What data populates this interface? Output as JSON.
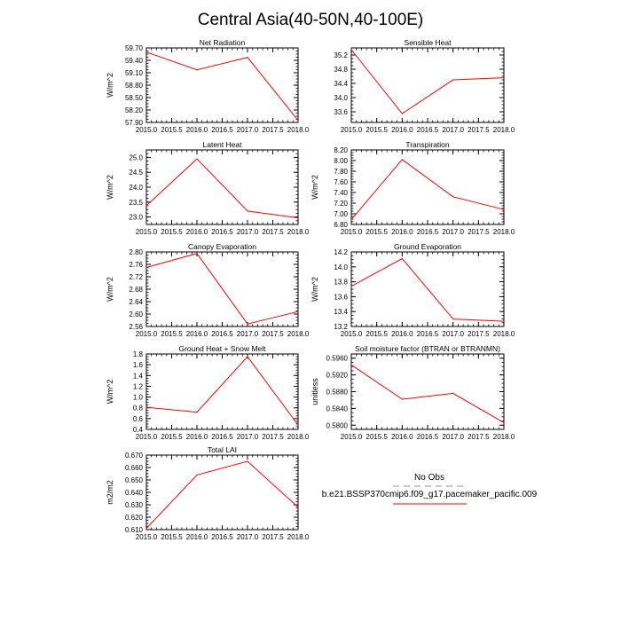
{
  "title": "Central Asia(40-50N,40-100E)",
  "colors": {
    "line": "#ff0000",
    "axis": "#000000",
    "no_obs": "#b4b4dc"
  },
  "legend": {
    "no_obs_label": "No Obs",
    "model_label": "b.e21.BSSP370cmip6.f09_g17.pacemaker_pacific.009"
  },
  "chart_data": [
    {
      "id": "net-radiation",
      "type": "line",
      "title": "Net Radiation",
      "ylabel": "W/m^2",
      "xlim": [
        2015.0,
        2018.0
      ],
      "ylim": [
        57.9,
        59.7
      ],
      "xticks": [
        2015.0,
        2015.5,
        2016.0,
        2016.5,
        2017.0,
        2017.5,
        2018.0
      ],
      "xtick_labels": [
        "2015.0",
        "2015.5",
        "2016.0",
        "2016.5",
        "2017.0",
        "2017.5",
        "2018.0"
      ],
      "yticks": [
        57.9,
        58.2,
        58.5,
        58.8,
        59.1,
        59.4,
        59.7
      ],
      "ytick_labels": [
        "57.90",
        "58.20",
        "58.50",
        "58.80",
        "59.10",
        "59.40",
        "59.70"
      ],
      "x": [
        2015,
        2016,
        2017,
        2018
      ],
      "y": [
        59.6,
        59.17,
        59.47,
        57.95
      ]
    },
    {
      "id": "sensible-heat",
      "type": "line",
      "title": "Sensible Heat",
      "ylabel": "",
      "xlim": [
        2015.0,
        2018.0
      ],
      "ylim": [
        33.3,
        35.4
      ],
      "xticks": [
        2015.0,
        2015.5,
        2016.0,
        2016.5,
        2017.0,
        2017.5,
        2018.0
      ],
      "xtick_labels": [
        "2015.0",
        "2015.5",
        "2016.0",
        "2016.5",
        "2017.0",
        "2017.5",
        "2018.0"
      ],
      "yticks": [
        33.6,
        34.0,
        34.4,
        34.8,
        35.2
      ],
      "ytick_labels": [
        "33.6",
        "34.0",
        "34.4",
        "34.8",
        "35.2"
      ],
      "x": [
        2015,
        2016,
        2017,
        2018
      ],
      "y": [
        35.35,
        33.55,
        34.5,
        34.56
      ]
    },
    {
      "id": "latent-heat",
      "type": "line",
      "title": "Latent Heat",
      "ylabel": "W/m^2",
      "xlim": [
        2015.0,
        2018.0
      ],
      "ylim": [
        22.75,
        25.25
      ],
      "xticks": [
        2015.0,
        2015.5,
        2016.0,
        2016.5,
        2017.0,
        2017.5,
        2018.0
      ],
      "xtick_labels": [
        "2015.0",
        "2015.5",
        "2016.0",
        "2016.5",
        "2017.0",
        "2017.5",
        "2018.0"
      ],
      "yticks": [
        23.0,
        23.5,
        24.0,
        24.5,
        25.0
      ],
      "ytick_labels": [
        "23.0",
        "23.5",
        "24.0",
        "24.5",
        "25.0"
      ],
      "x": [
        2015,
        2016,
        2017,
        2018
      ],
      "y": [
        23.38,
        24.95,
        23.2,
        22.97
      ]
    },
    {
      "id": "transpiration",
      "type": "line",
      "title": "Transpiration",
      "ylabel": "W/m^2",
      "xlim": [
        2015.0,
        2018.0
      ],
      "ylim": [
        6.8,
        8.2
      ],
      "xticks": [
        2015.0,
        2015.5,
        2016.0,
        2016.5,
        2017.0,
        2017.5,
        2018.0
      ],
      "xtick_labels": [
        "2015.0",
        "2015.5",
        "2016.0",
        "2016.5",
        "2017.0",
        "2017.5",
        "2018.0"
      ],
      "yticks": [
        6.8,
        7.0,
        7.2,
        7.4,
        7.6,
        7.8,
        8.0,
        8.2
      ],
      "ytick_labels": [
        "6.80",
        "7.00",
        "7.20",
        "7.40",
        "7.60",
        "7.80",
        "8.00",
        "8.20"
      ],
      "x": [
        2015,
        2016,
        2017,
        2018
      ],
      "y": [
        6.89,
        8.02,
        7.32,
        7.08
      ]
    },
    {
      "id": "canopy-evaporation",
      "type": "line",
      "title": "Canopy Evaporation",
      "ylabel": "W/m^2",
      "xlim": [
        2015.0,
        2018.0
      ],
      "ylim": [
        2.56,
        2.8
      ],
      "xticks": [
        2015.0,
        2015.5,
        2016.0,
        2016.5,
        2017.0,
        2017.5,
        2018.0
      ],
      "xtick_labels": [
        "2015.0",
        "2015.5",
        "2016.0",
        "2016.5",
        "2017.0",
        "2017.5",
        "2018.0"
      ],
      "yticks": [
        2.56,
        2.6,
        2.64,
        2.68,
        2.72,
        2.76,
        2.8
      ],
      "ytick_labels": [
        "2.56",
        "2.60",
        "2.64",
        "2.68",
        "2.72",
        "2.76",
        "2.80"
      ],
      "x": [
        2015,
        2016,
        2017,
        2018
      ],
      "y": [
        2.75,
        2.795,
        2.568,
        2.608
      ]
    },
    {
      "id": "ground-evaporation",
      "type": "line",
      "title": "Ground Evaporation",
      "ylabel": "W/m^2",
      "xlim": [
        2015.0,
        2018.0
      ],
      "ylim": [
        13.2,
        14.2
      ],
      "xticks": [
        2015.0,
        2015.5,
        2016.0,
        2016.5,
        2017.0,
        2017.5,
        2018.0
      ],
      "xtick_labels": [
        "2015.0",
        "2015.5",
        "2016.0",
        "2016.5",
        "2017.0",
        "2017.5",
        "2018.0"
      ],
      "yticks": [
        13.2,
        13.4,
        13.6,
        13.8,
        14.0,
        14.2
      ],
      "ytick_labels": [
        "13.2",
        "13.4",
        "13.6",
        "13.8",
        "14.0",
        "14.2"
      ],
      "x": [
        2015,
        2016,
        2017,
        2018
      ],
      "y": [
        13.74,
        14.11,
        13.3,
        13.27
      ]
    },
    {
      "id": "ground-heat-snow-melt",
      "type": "line",
      "title": "Ground Heat + Snow Melt",
      "ylabel": "W/m^2",
      "xlim": [
        2015.0,
        2018.0
      ],
      "ylim": [
        0.4,
        1.8
      ],
      "xticks": [
        2015.0,
        2015.5,
        2016.0,
        2016.5,
        2017.0,
        2017.5,
        2018.0
      ],
      "xtick_labels": [
        "2015.0",
        "2015.5",
        "2016.0",
        "2016.5",
        "2017.0",
        "2017.5",
        "2018.0"
      ],
      "yticks": [
        0.4,
        0.6,
        0.8,
        1.0,
        1.2,
        1.4,
        1.6,
        1.8
      ],
      "ytick_labels": [
        "0.4",
        "0.6",
        "0.8",
        "1.0",
        "1.2",
        "1.4",
        "1.6",
        "1.8"
      ],
      "x": [
        2015,
        2016,
        2017,
        2018
      ],
      "y": [
        0.81,
        0.72,
        1.75,
        0.48
      ]
    },
    {
      "id": "soil-moisture-factor",
      "type": "line",
      "title": "Soil moisture factor (BTRAN or BTRANMN)",
      "ylabel": "unitless",
      "xlim": [
        2015.0,
        2018.0
      ],
      "ylim": [
        0.579,
        0.597
      ],
      "xticks": [
        2015.0,
        2015.5,
        2016.0,
        2016.5,
        2017.0,
        2017.5,
        2018.0
      ],
      "xtick_labels": [
        "2015.0",
        "2015.5",
        "2016.0",
        "2016.5",
        "2017.0",
        "2017.5",
        "2018.0"
      ],
      "yticks": [
        0.58,
        0.584,
        0.588,
        0.592,
        0.596
      ],
      "ytick_labels": [
        "0.5800",
        "0.5840",
        "0.5880",
        "0.5920",
        "0.5960"
      ],
      "x": [
        2015,
        2016,
        2017,
        2018
      ],
      "y": [
        0.5944,
        0.5862,
        0.5876,
        0.5806
      ]
    },
    {
      "id": "total-lai",
      "type": "line",
      "title": "Total LAI",
      "ylabel": "m2/m2",
      "xlim": [
        2015.0,
        2018.0
      ],
      "ylim": [
        0.61,
        0.67
      ],
      "xticks": [
        2015.0,
        2015.5,
        2016.0,
        2016.5,
        2017.0,
        2017.5,
        2018.0
      ],
      "xtick_labels": [
        "2015.0",
        "2015.5",
        "2016.0",
        "2016.5",
        "2017.0",
        "2017.5",
        "2018.0"
      ],
      "yticks": [
        0.61,
        0.62,
        0.63,
        0.64,
        0.65,
        0.66,
        0.67
      ],
      "ytick_labels": [
        "0.610",
        "0.620",
        "0.630",
        "0.640",
        "0.650",
        "0.660",
        "0.670"
      ],
      "x": [
        2015,
        2016,
        2017,
        2018
      ],
      "y": [
        0.611,
        0.654,
        0.665,
        0.628
      ]
    }
  ]
}
